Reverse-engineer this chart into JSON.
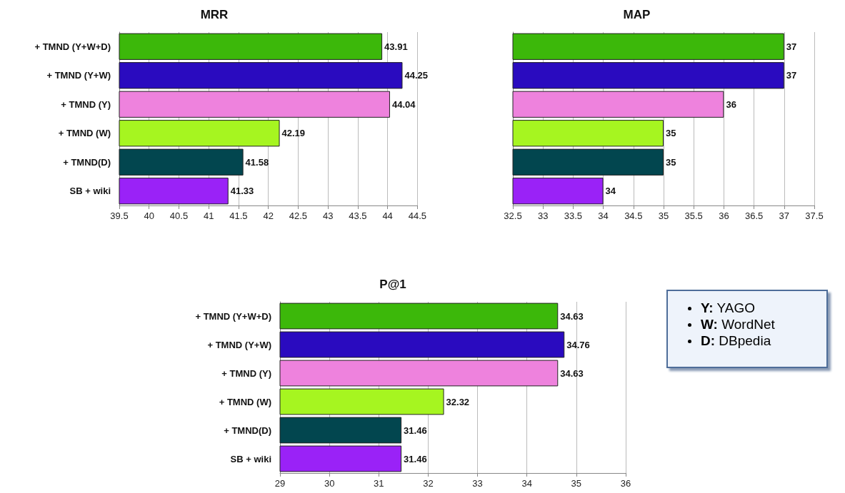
{
  "chart_data": [
    {
      "type": "bar",
      "orientation": "horizontal",
      "title": "MRR",
      "categories": [
        "+ TMND (Y+W+D)",
        "+ TMND (Y+W)",
        "+ TMND (Y)",
        "+ TMND (W)",
        "+ TMND(D)",
        "SB + wiki"
      ],
      "values": [
        43.91,
        44.25,
        44.04,
        42.19,
        41.58,
        41.33
      ],
      "colors": [
        "#3cb80a",
        "#2a0bbf",
        "#ee82dd",
        "#a6f520",
        "#02464f",
        "#9a22f7"
      ],
      "xlim": [
        39.5,
        44.5
      ],
      "xticks": [
        39.5,
        40,
        40.5,
        41,
        41.5,
        42,
        42.5,
        43,
        43.5,
        44,
        44.5
      ],
      "grid": "x",
      "data_labels": true
    },
    {
      "type": "bar",
      "orientation": "horizontal",
      "title": "MAP",
      "categories": [
        null,
        null,
        null,
        null,
        null,
        null
      ],
      "values": [
        37,
        37,
        36,
        35,
        35,
        34
      ],
      "colors": [
        "#3cb80a",
        "#2a0bbf",
        "#ee82dd",
        "#a6f520",
        "#02464f",
        "#9a22f7"
      ],
      "xlim": [
        32.5,
        37.5
      ],
      "xticks": [
        32.5,
        33,
        33.5,
        34,
        34.5,
        35,
        35.5,
        36,
        36.5,
        37,
        37.5
      ],
      "grid": "x",
      "data_labels": true
    },
    {
      "type": "bar",
      "orientation": "horizontal",
      "title": "P@1",
      "categories": [
        "+ TMND (Y+W+D)",
        "+ TMND (Y+W)",
        "+ TMND (Y)",
        "+ TMND (W)",
        "+ TMND(D)",
        "SB + wiki"
      ],
      "values": [
        34.63,
        34.76,
        34.63,
        32.32,
        31.46,
        31.46
      ],
      "colors": [
        "#3cb80a",
        "#2a0bbf",
        "#ee82dd",
        "#a6f520",
        "#02464f",
        "#9a22f7"
      ],
      "xlim": [
        29,
        36
      ],
      "xticks": [
        29,
        30,
        31,
        32,
        33,
        34,
        35,
        36
      ],
      "grid": "x",
      "data_labels": true
    },
    {
      "type": "other",
      "annotations": [
        "Y: YAGO",
        "W: WordNet",
        "D: DBpedia"
      ]
    }
  ]
}
